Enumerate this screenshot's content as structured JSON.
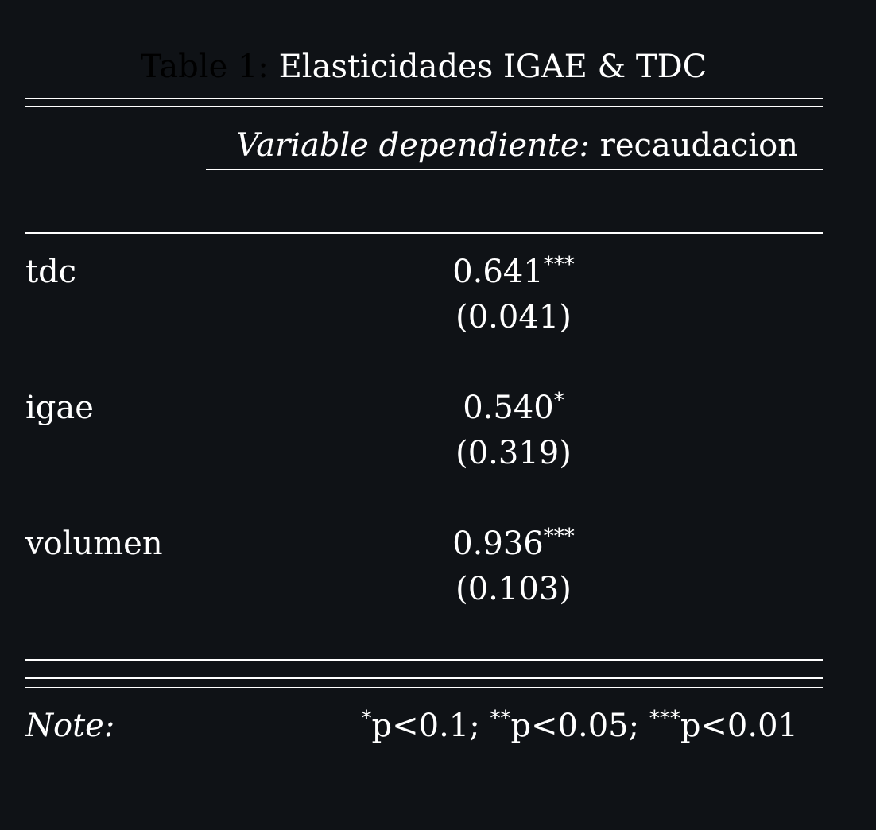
{
  "caption": {
    "prefix": "Table 1:",
    "title": "Elasticidades IGAE & TDC"
  },
  "header": {
    "dep_var_label": "Variable dependiente:",
    "dep_var_name": "recaudacion"
  },
  "rows": [
    {
      "name": "tdc",
      "coef": "0.641",
      "stars": "***",
      "se": "(0.041)"
    },
    {
      "name": "igae",
      "coef": "0.540",
      "stars": "*",
      "se": "(0.319)"
    },
    {
      "name": "volumen",
      "coef": "0.936",
      "stars": "***",
      "se": "(0.103)"
    }
  ],
  "note": {
    "label": "Note:",
    "s1": "*",
    "t1": "p<0.1; ",
    "s2": "**",
    "t2": "p<0.05; ",
    "s3": "***",
    "t3": "p<0.01"
  },
  "colors": {
    "background": "#0f1216",
    "text": "#ffffff",
    "caption_prefix": "#000000"
  }
}
